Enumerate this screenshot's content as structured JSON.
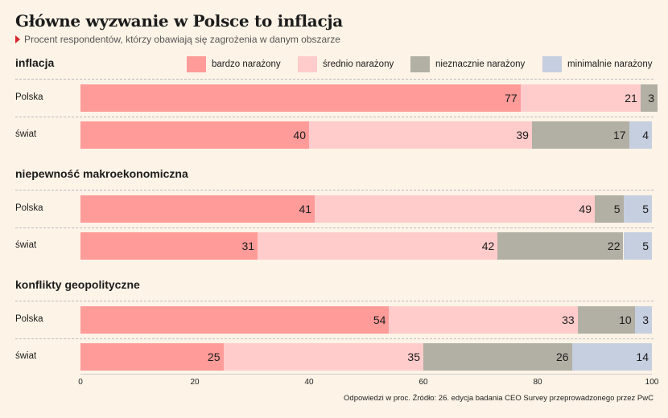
{
  "title": "Główne wyzwanie w Polsce to inflacja",
  "subtitle": "Procent respondentów, którzy obawiają się zagrożenia w danym obszarze",
  "footer": "Odpowiedzi w proc. Źródło: 26. edycja badania CEO Survey przeprowadzonego przez PwC",
  "colors": {
    "bardzo": "#ff9b99",
    "srednio": "#ffcccb",
    "nieznacznie": "#b2b0a4",
    "minimalnie": "#c5cfe0"
  },
  "chart_data": {
    "type": "bar",
    "orientation": "horizontal",
    "stacked": true,
    "xlim": [
      0,
      100
    ],
    "xticks": [
      "0",
      "20",
      "40",
      "60",
      "80",
      "100"
    ],
    "legend": {
      "position": "top-right",
      "entries": [
        "bardzo narażony",
        "średnio narażony",
        "nieznacznie narażony",
        "minimalnie narażony"
      ]
    },
    "groups": [
      {
        "title": "inflacja",
        "rows": [
          {
            "label": "Polska",
            "values": [
              77,
              21,
              3,
              0
            ]
          },
          {
            "label": "świat",
            "values": [
              40,
              39,
              17,
              4
            ]
          }
        ]
      },
      {
        "title": "niepewność makroekonomiczna",
        "rows": [
          {
            "label": "Polska",
            "values": [
              41,
              49,
              5,
              5
            ]
          },
          {
            "label": "świat",
            "values": [
              31,
              42,
              22,
              5
            ]
          }
        ]
      },
      {
        "title": "konflikty geopolityczne",
        "rows": [
          {
            "label": "Polska",
            "values": [
              54,
              33,
              10,
              3
            ]
          },
          {
            "label": "świat",
            "values": [
              25,
              35,
              26,
              14
            ]
          }
        ]
      }
    ]
  }
}
